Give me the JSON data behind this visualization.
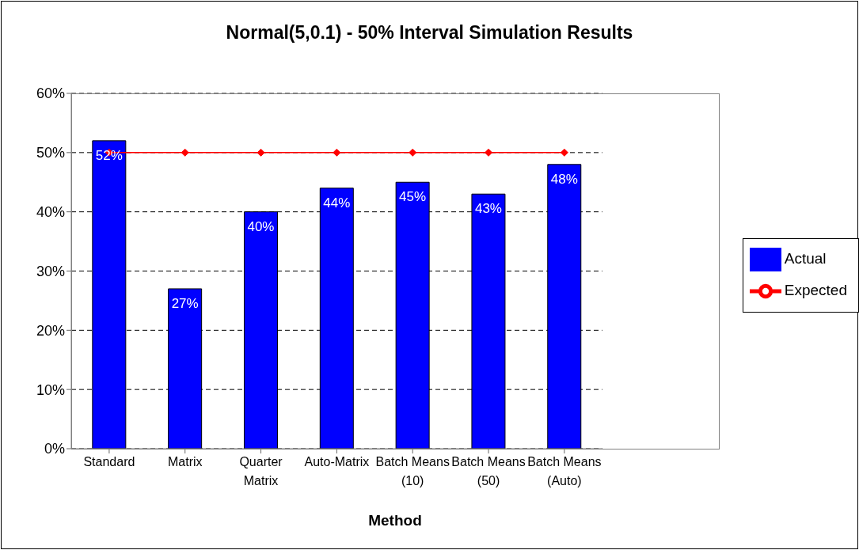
{
  "chart_data": {
    "type": "bar",
    "title": "Normal(5,0.1) - 50% Interval Simulation Results",
    "xlabel": "Method",
    "categories": [
      "Standard",
      "Matrix",
      "Quarter Matrix",
      "Auto-Matrix",
      "Batch Means (10)",
      "Batch Means (50)",
      "Batch Means (Auto)"
    ],
    "series": [
      {
        "name": "Actual",
        "color": "#0000ff",
        "values": [
          52,
          27,
          40,
          44,
          45,
          43,
          48
        ],
        "value_labels": [
          "52%",
          "27%",
          "40%",
          "44%",
          "45%",
          "43%",
          "48%"
        ]
      },
      {
        "name": "Expected",
        "type": "line",
        "color": "#ff0000",
        "values": [
          50,
          50,
          50,
          50,
          50,
          50,
          50
        ],
        "marker": "diamond"
      }
    ],
    "ylim": [
      0,
      60
    ],
    "yticks": [
      {
        "value": 0,
        "label": "0%"
      },
      {
        "value": 10,
        "label": "10%"
      },
      {
        "value": 20,
        "label": "20%"
      },
      {
        "value": 30,
        "label": "30%"
      },
      {
        "value": 40,
        "label": "40%"
      },
      {
        "value": 50,
        "label": "50%"
      },
      {
        "value": 60,
        "label": "60%"
      }
    ],
    "grid": "y",
    "legend": "right",
    "line_style": "solid"
  }
}
